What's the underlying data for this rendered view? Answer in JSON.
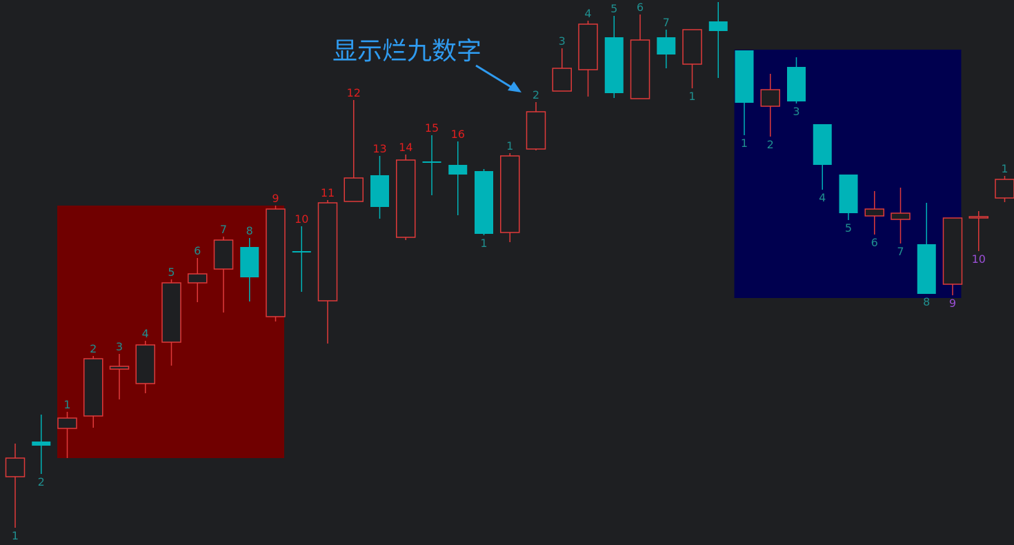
{
  "annotation": {
    "text": "显示烂九数字",
    "color": "#2f9bf0"
  },
  "colors": {
    "up": "#e03a3a",
    "down": "#00b3b8",
    "count_teal": "#1f8f8f",
    "count_red": "#e01f1f",
    "count_purple": "#9a4fd6",
    "zone_red": "#700000",
    "zone_blue": "#00004f",
    "background": "#1e1f22"
  },
  "chart_data": {
    "type": "candlestick",
    "title": "",
    "xlabel": "",
    "ylabel": "",
    "grid": false,
    "ylim": [
      0,
      790
    ],
    "zones": [
      {
        "name": "",
        "color": "zone_red",
        "from_candle": 2,
        "to_candle": 10,
        "top": 492,
        "bottom": 126
      },
      {
        "name": "",
        "color": "zone_blue",
        "from_candle": 28,
        "to_candle": 36,
        "top": 718,
        "bottom": 358
      }
    ],
    "candles": [
      {
        "o": 99,
        "c": 126,
        "h": 147,
        "l": 25,
        "dir": "up",
        "count": "1",
        "count_pos": "below",
        "count_color": "count_teal"
      },
      {
        "o": 150,
        "c": 144,
        "h": 189,
        "l": 103,
        "dir": "down",
        "count": "2",
        "count_pos": "below",
        "count_color": "count_teal"
      },
      {
        "o": 169,
        "c": 184,
        "h": 193,
        "l": 126,
        "dir": "up",
        "count": "1",
        "count_pos": "above",
        "count_color": "count_teal"
      },
      {
        "o": 187,
        "c": 270,
        "h": 274,
        "l": 170,
        "dir": "up",
        "count": "2",
        "count_pos": "above",
        "count_color": "count_teal"
      },
      {
        "o": 255,
        "c": 259,
        "h": 277,
        "l": 211,
        "dir": "up",
        "count": "3",
        "count_pos": "above",
        "count_color": "count_teal"
      },
      {
        "o": 234,
        "c": 290,
        "h": 296,
        "l": 220,
        "dir": "up",
        "count": "4",
        "count_pos": "above",
        "count_color": "count_teal"
      },
      {
        "o": 294,
        "c": 380,
        "h": 385,
        "l": 260,
        "dir": "up",
        "count": "5",
        "count_pos": "above",
        "count_color": "count_teal"
      },
      {
        "o": 380,
        "c": 393,
        "h": 416,
        "l": 352,
        "dir": "up",
        "count": "6",
        "count_pos": "above",
        "count_color": "count_teal"
      },
      {
        "o": 400,
        "c": 442,
        "h": 447,
        "l": 337,
        "dir": "up",
        "count": "7",
        "count_pos": "above",
        "count_color": "count_teal"
      },
      {
        "o": 432,
        "c": 388,
        "h": 445,
        "l": 353,
        "dir": "down",
        "count": "8",
        "count_pos": "above",
        "count_color": "count_teal"
      },
      {
        "o": 331,
        "c": 487,
        "h": 492,
        "l": 324,
        "dir": "up",
        "count": "9",
        "count_pos": "above",
        "count_color": "count_red"
      },
      {
        "o": 426,
        "c": 424,
        "h": 462,
        "l": 367,
        "dir": "down",
        "count": "10",
        "count_pos": "above",
        "count_color": "count_red"
      },
      {
        "o": 354,
        "c": 496,
        "h": 500,
        "l": 292,
        "dir": "up",
        "count": "11",
        "count_pos": "above",
        "count_color": "count_red"
      },
      {
        "o": 498,
        "c": 532,
        "h": 645,
        "l": 498,
        "dir": "up",
        "count": "12",
        "count_pos": "above",
        "count_color": "count_red"
      },
      {
        "o": 536,
        "c": 490,
        "h": 564,
        "l": 473,
        "dir": "down",
        "count": "13",
        "count_pos": "above",
        "count_color": "count_red"
      },
      {
        "o": 446,
        "c": 558,
        "h": 566,
        "l": 442,
        "dir": "up",
        "count": "14",
        "count_pos": "above",
        "count_color": "count_red"
      },
      {
        "o": 555,
        "c": 555,
        "h": 594,
        "l": 507,
        "dir": "down",
        "count": "15",
        "count_pos": "above",
        "count_color": "count_red"
      },
      {
        "o": 551,
        "c": 537,
        "h": 585,
        "l": 478,
        "dir": "down",
        "count": "16",
        "count_pos": "above",
        "count_color": "count_red"
      },
      {
        "o": 542,
        "c": 451,
        "h": 545,
        "l": 449,
        "dir": "down",
        "count": "1",
        "count_pos": "below",
        "count_color": "count_teal"
      },
      {
        "o": 453,
        "c": 564,
        "h": 568,
        "l": 439,
        "dir": "up",
        "count": "1",
        "count_pos": "above",
        "count_color": "count_teal"
      },
      {
        "o": 574,
        "c": 628,
        "h": 642,
        "l": 572,
        "dir": "up",
        "count": "2",
        "count_pos": "above",
        "count_color": "count_teal"
      },
      {
        "o": 658,
        "c": 691,
        "h": 720,
        "l": 658,
        "dir": "up",
        "count": "3",
        "count_pos": "above",
        "count_color": "count_teal"
      },
      {
        "o": 689,
        "c": 755,
        "h": 760,
        "l": 650,
        "dir": "up",
        "count": "4",
        "count_pos": "above",
        "count_color": "count_teal"
      },
      {
        "o": 736,
        "c": 655,
        "h": 767,
        "l": 648,
        "dir": "down",
        "count": "5",
        "count_pos": "above",
        "count_color": "count_teal"
      },
      {
        "o": 647,
        "c": 732,
        "h": 769,
        "l": 647,
        "dir": "up",
        "count": "6",
        "count_pos": "above",
        "count_color": "count_teal"
      },
      {
        "o": 736,
        "c": 711,
        "h": 747,
        "l": 691,
        "dir": "down",
        "count": "7",
        "count_pos": "above",
        "count_color": "count_teal"
      },
      {
        "o": 697,
        "c": 747,
        "h": 747,
        "l": 662,
        "dir": "up",
        "count": "1",
        "count_pos": "below",
        "count_color": "count_teal"
      },
      {
        "o": 759,
        "c": 745,
        "h": 787,
        "l": 677,
        "dir": "down",
        "count": "",
        "count_pos": "above",
        "count_color": "count_teal"
      },
      {
        "o": 717,
        "c": 641,
        "h": 717,
        "l": 594,
        "dir": "down",
        "count": "1",
        "count_pos": "below",
        "count_color": "count_teal"
      },
      {
        "o": 636,
        "c": 660,
        "h": 683,
        "l": 592,
        "dir": "up",
        "count": "2",
        "count_pos": "below",
        "count_color": "count_teal"
      },
      {
        "o": 693,
        "c": 643,
        "h": 707,
        "l": 640,
        "dir": "down",
        "count": "3",
        "count_pos": "below",
        "count_color": "count_teal"
      },
      {
        "o": 610,
        "c": 551,
        "h": 610,
        "l": 515,
        "dir": "down",
        "count": "4",
        "count_pos": "below",
        "count_color": "count_teal"
      },
      {
        "o": 537,
        "c": 481,
        "h": 537,
        "l": 471,
        "dir": "down",
        "count": "5",
        "count_pos": "below",
        "count_color": "count_teal"
      },
      {
        "o": 477,
        "c": 487,
        "h": 513,
        "l": 450,
        "dir": "up",
        "count": "6",
        "count_pos": "below",
        "count_color": "count_teal"
      },
      {
        "o": 472,
        "c": 481,
        "h": 518,
        "l": 437,
        "dir": "up",
        "count": "7",
        "count_pos": "below",
        "count_color": "count_teal"
      },
      {
        "o": 436,
        "c": 364,
        "h": 496,
        "l": 364,
        "dir": "down",
        "count": "8",
        "count_pos": "below",
        "count_color": "count_teal"
      },
      {
        "o": 378,
        "c": 474,
        "h": 474,
        "l": 362,
        "dir": "up",
        "count": "9",
        "count_pos": "below",
        "count_color": "count_purple"
      },
      {
        "o": 475,
        "c": 475,
        "h": 484,
        "l": 426,
        "dir": "up",
        "count": "10",
        "count_pos": "below",
        "count_color": "count_purple"
      },
      {
        "o": 503,
        "c": 530,
        "h": 535,
        "l": 497,
        "dir": "up",
        "count": "1",
        "count_pos": "above",
        "count_color": "count_teal"
      }
    ]
  }
}
